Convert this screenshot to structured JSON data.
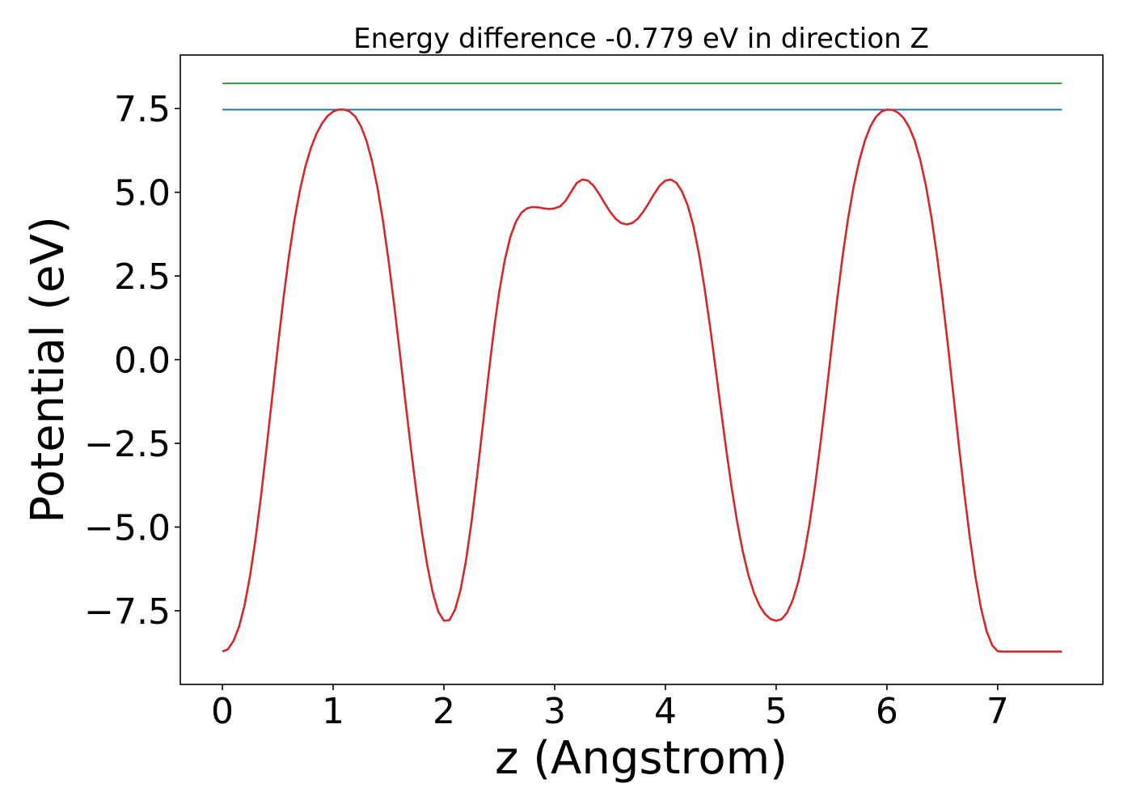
{
  "chart_data": {
    "type": "line",
    "title": "Energy difference -0.779 eV in direction Z",
    "xlabel": "z (Angstrom)",
    "ylabel": "Potential (eV)",
    "xlim": [
      -0.38,
      7.95
    ],
    "ylim": [
      -9.7,
      9.1
    ],
    "x_ticks": [
      0,
      1,
      2,
      3,
      4,
      5,
      6,
      7
    ],
    "x_tick_labels": [
      "0",
      "1",
      "2",
      "3",
      "4",
      "5",
      "6",
      "7"
    ],
    "y_ticks": [
      -7.5,
      -5.0,
      -2.5,
      0.0,
      2.5,
      5.0,
      7.5
    ],
    "y_tick_labels": [
      "−7.5",
      "−5.0",
      "−2.5",
      "0.0",
      "2.5",
      "5.0",
      "7.5"
    ],
    "grid": false,
    "series": [
      {
        "color": "#2ca02c",
        "x": [
          0,
          7.58
        ],
        "y": [
          8.25,
          8.25
        ]
      },
      {
        "color": "#1f77b4",
        "x": [
          0,
          7.58
        ],
        "y": [
          7.47,
          7.47
        ]
      },
      {
        "color": "#d62728",
        "x": [
          0.0,
          0.05,
          0.1,
          0.15,
          0.2,
          0.25,
          0.3,
          0.35,
          0.4,
          0.45,
          0.5,
          0.55,
          0.6,
          0.65,
          0.7,
          0.75,
          0.8,
          0.85,
          0.9,
          0.95,
          1.0,
          1.05,
          1.1,
          1.15,
          1.2,
          1.25,
          1.3,
          1.35,
          1.4,
          1.45,
          1.5,
          1.55,
          1.6,
          1.65,
          1.7,
          1.75,
          1.8,
          1.85,
          1.9,
          1.95,
          2.0,
          2.05,
          2.1,
          2.15,
          2.2,
          2.25,
          2.3,
          2.35,
          2.4,
          2.45,
          2.5,
          2.55,
          2.6,
          2.65,
          2.7,
          2.75,
          2.8,
          2.85,
          2.9,
          2.95,
          3.0,
          3.05,
          3.1,
          3.15,
          3.2,
          3.25,
          3.3,
          3.35,
          3.4,
          3.45,
          3.5,
          3.55,
          3.6,
          3.65,
          3.7,
          3.75,
          3.8,
          3.85,
          3.9,
          3.95,
          4.0,
          4.05,
          4.1,
          4.15,
          4.2,
          4.25,
          4.3,
          4.35,
          4.4,
          4.45,
          4.5,
          4.55,
          4.6,
          4.65,
          4.7,
          4.75,
          4.8,
          4.85,
          4.9,
          4.95,
          5.0,
          5.05,
          5.1,
          5.15,
          5.2,
          5.25,
          5.3,
          5.35,
          5.4,
          5.45,
          5.5,
          5.55,
          5.6,
          5.65,
          5.7,
          5.75,
          5.8,
          5.85,
          5.9,
          5.95,
          6.0,
          6.05,
          6.1,
          6.15,
          6.2,
          6.25,
          6.3,
          6.35,
          6.4,
          6.45,
          6.5,
          6.55,
          6.6,
          6.65,
          6.7,
          6.75,
          6.8,
          6.85,
          6.9,
          6.95,
          7.0,
          7.05,
          7.1,
          7.15,
          7.2,
          7.25,
          7.3,
          7.35,
          7.4,
          7.45,
          7.5,
          7.55,
          7.58
        ],
        "y": [
          -8.72,
          -8.65,
          -8.4,
          -7.98,
          -7.34,
          -6.45,
          -5.34,
          -4.04,
          -2.6,
          -1.11,
          0.37,
          1.8,
          3.07,
          4.16,
          5.06,
          5.78,
          6.33,
          6.75,
          7.06,
          7.28,
          7.41,
          7.47,
          7.47,
          7.41,
          7.26,
          6.98,
          6.55,
          5.94,
          5.14,
          4.14,
          2.97,
          1.66,
          0.26,
          -1.18,
          -2.59,
          -3.92,
          -5.12,
          -6.15,
          -6.97,
          -7.53,
          -7.8,
          -7.78,
          -7.47,
          -6.88,
          -5.99,
          -4.83,
          -3.46,
          -2.0,
          -0.53,
          0.85,
          2.04,
          2.98,
          3.67,
          4.12,
          4.39,
          4.52,
          4.56,
          4.55,
          4.52,
          4.5,
          4.52,
          4.58,
          4.75,
          5.02,
          5.28,
          5.38,
          5.35,
          5.2,
          4.96,
          4.68,
          4.42,
          4.21,
          4.08,
          4.04,
          4.08,
          4.21,
          4.42,
          4.68,
          4.96,
          5.2,
          5.35,
          5.38,
          5.28,
          5.02,
          4.62,
          4.03,
          3.22,
          2.21,
          1.06,
          -0.19,
          -1.46,
          -2.71,
          -3.87,
          -4.89,
          -5.75,
          -6.44,
          -6.97,
          -7.35,
          -7.6,
          -7.75,
          -7.8,
          -7.75,
          -7.55,
          -7.18,
          -6.63,
          -5.88,
          -4.93,
          -3.79,
          -2.5,
          -1.1,
          0.36,
          1.78,
          3.09,
          4.23,
          5.18,
          5.94,
          6.53,
          6.96,
          7.25,
          7.41,
          7.47,
          7.46,
          7.38,
          7.22,
          6.95,
          6.55,
          5.98,
          5.23,
          4.29,
          3.16,
          1.87,
          0.45,
          -1.05,
          -2.57,
          -4.02,
          -5.35,
          -6.5,
          -7.43,
          -8.11,
          -8.53,
          -8.71,
          -8.72,
          -8.72,
          -8.72,
          -8.72,
          -8.72,
          -8.72,
          -8.72,
          -8.72,
          -8.72,
          -8.72,
          -8.72,
          -8.72
        ]
      }
    ]
  }
}
